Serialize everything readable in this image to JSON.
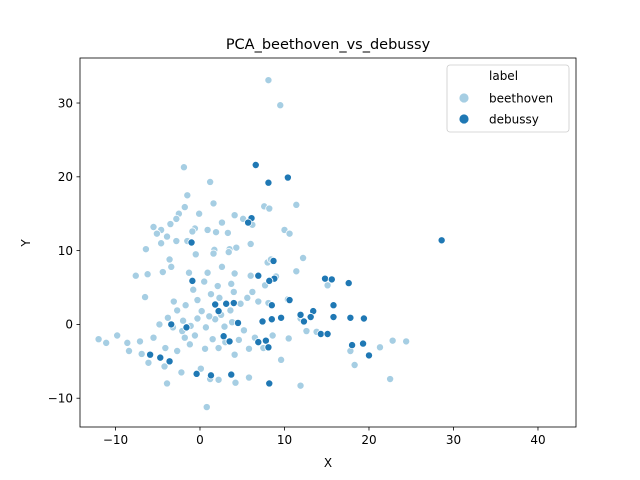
{
  "chart_data": {
    "type": "scatter",
    "title": "PCA_beethoven_vs_debussy",
    "xlabel": "X",
    "ylabel": "Y",
    "xlim": [
      -14.2,
      44.5
    ],
    "ylim": [
      -13.9,
      36.1
    ],
    "xticks": [
      -10,
      0,
      10,
      20,
      30,
      40
    ],
    "yticks": [
      -10,
      0,
      10,
      20,
      30
    ],
    "grid": false,
    "legend": {
      "title": "label",
      "placement": "top-right"
    },
    "series": [
      {
        "name": "beethoven",
        "color": "#a6cee3",
        "points": [
          [
            8.1,
            33.1
          ],
          [
            9.5,
            29.7
          ],
          [
            -1.9,
            21.3
          ],
          [
            1.2,
            19.3
          ],
          [
            -1.5,
            17.5
          ],
          [
            7.6,
            16.0
          ],
          [
            8.2,
            15.7
          ],
          [
            11.4,
            16.2
          ],
          [
            1.6,
            16.4
          ],
          [
            -1.8,
            15.9
          ],
          [
            -2.5,
            15.0
          ],
          [
            -3.5,
            13.6
          ],
          [
            -4.6,
            12.8
          ],
          [
            -5.1,
            12.3
          ],
          [
            -5.5,
            13.2
          ],
          [
            -2.8,
            14.3
          ],
          [
            -0.1,
            15.0
          ],
          [
            -0.6,
            13.0
          ],
          [
            0.9,
            12.8
          ],
          [
            1.9,
            12.5
          ],
          [
            2.6,
            13.8
          ],
          [
            3.3,
            12.4
          ],
          [
            4.1,
            14.8
          ],
          [
            5.1,
            14.3
          ],
          [
            6.2,
            13.5
          ],
          [
            -3.9,
            11.9
          ],
          [
            -2.8,
            11.3
          ],
          [
            -1.5,
            11.3
          ],
          [
            -0.9,
            12.6
          ],
          [
            -4.6,
            11.0
          ],
          [
            1.7,
            10.1
          ],
          [
            3.5,
            10.2
          ],
          [
            4.3,
            10.4
          ],
          [
            6.0,
            10.9
          ],
          [
            10.0,
            12.8
          ],
          [
            10.6,
            12.3
          ],
          [
            -6.4,
            10.2
          ],
          [
            -3.6,
            8.8
          ],
          [
            -0.5,
            9.5
          ],
          [
            1.6,
            9.6
          ],
          [
            3.4,
            9.8
          ],
          [
            -4.4,
            7.1
          ],
          [
            -7.6,
            6.6
          ],
          [
            -6.2,
            6.8
          ],
          [
            -3.4,
            7.8
          ],
          [
            -1.3,
            7.0
          ],
          [
            0.9,
            7.0
          ],
          [
            2.6,
            7.8
          ],
          [
            4.1,
            6.9
          ],
          [
            6.0,
            6.6
          ],
          [
            8.0,
            8.4
          ],
          [
            11.4,
            7.2
          ],
          [
            12.2,
            9.0
          ],
          [
            8.4,
            8.8
          ],
          [
            -6.5,
            3.7
          ],
          [
            -3.1,
            3.1
          ],
          [
            -1.7,
            2.6
          ],
          [
            -0.3,
            3.3
          ],
          [
            1.3,
            4.1
          ],
          [
            2.3,
            3.6
          ],
          [
            4.0,
            4.4
          ],
          [
            4.8,
            2.8
          ],
          [
            6.9,
            3.1
          ],
          [
            8.1,
            2.9
          ],
          [
            10.4,
            3.4
          ],
          [
            11.9,
            0.8
          ],
          [
            15.1,
            5.3
          ],
          [
            5.2,
            -0.8
          ],
          [
            -4.8,
            0.0
          ],
          [
            -3.2,
            -0.4
          ],
          [
            -2.1,
            -0.9
          ],
          [
            -1.1,
            -0.2
          ],
          [
            -0.3,
            0.8
          ],
          [
            0.7,
            -0.4
          ],
          [
            1.8,
            0.7
          ],
          [
            2.9,
            -0.3
          ],
          [
            3.8,
            0.3
          ],
          [
            -1.8,
            -1.8
          ],
          [
            -0.6,
            -1.5
          ],
          [
            1.5,
            -2.0
          ],
          [
            3.0,
            -2.4
          ],
          [
            4.6,
            -2.1
          ],
          [
            6.5,
            -1.8
          ],
          [
            8.6,
            -1.5
          ],
          [
            10.5,
            -1.9
          ],
          [
            12.6,
            -0.9
          ],
          [
            13.8,
            -1.0
          ],
          [
            -5.5,
            -1.8
          ],
          [
            -7.1,
            -2.3
          ],
          [
            -8.4,
            -3.6
          ],
          [
            -6.9,
            -4.0
          ],
          [
            -4.1,
            -3.2
          ],
          [
            -2.7,
            -3.6
          ],
          [
            -1.2,
            -2.7
          ],
          [
            0.6,
            -3.3
          ],
          [
            2.2,
            -3.2
          ],
          [
            4.1,
            -4.1
          ],
          [
            5.8,
            -3.3
          ],
          [
            7.5,
            -3.2
          ],
          [
            9.6,
            -4.8
          ],
          [
            -9.8,
            -1.5
          ],
          [
            -11.1,
            -2.5
          ],
          [
            -12.0,
            -2.0
          ],
          [
            -8.6,
            -2.5
          ],
          [
            -6.1,
            -5.2
          ],
          [
            -4.2,
            -5.7
          ],
          [
            -2.2,
            -6.5
          ],
          [
            0.1,
            -6.0
          ],
          [
            1.2,
            -7.4
          ],
          [
            2.2,
            -7.5
          ],
          [
            4.2,
            -7.9
          ],
          [
            5.8,
            -7.2
          ],
          [
            -3.9,
            -8.0
          ],
          [
            0.8,
            -11.2
          ],
          [
            17.8,
            -3.6
          ],
          [
            18.3,
            -5.5
          ],
          [
            21.3,
            -3.1
          ],
          [
            22.8,
            -2.2
          ],
          [
            24.4,
            -2.3
          ],
          [
            22.5,
            -7.4
          ],
          [
            11.9,
            -8.3
          ],
          [
            -2.0,
            0.5
          ],
          [
            0.2,
            1.8
          ],
          [
            1.1,
            1.1
          ],
          [
            2.5,
            1.3
          ],
          [
            3.6,
            1.9
          ],
          [
            5.6,
            3.6
          ],
          [
            -0.8,
            4.7
          ],
          [
            0.5,
            5.8
          ],
          [
            2.1,
            5.2
          ],
          [
            3.7,
            5.5
          ],
          [
            6.2,
            4.4
          ],
          [
            7.7,
            5.3
          ],
          [
            9.0,
            6.5
          ],
          [
            -2.7,
            1.9
          ],
          [
            -3.8,
            0.9
          ]
        ]
      },
      {
        "name": "debussy",
        "color": "#1f78b4",
        "points": [
          [
            6.6,
            21.6
          ],
          [
            8.1,
            19.2
          ],
          [
            10.4,
            19.9
          ],
          [
            28.6,
            11.4
          ],
          [
            6.1,
            14.4
          ],
          [
            5.7,
            13.8
          ],
          [
            -1.0,
            11.1
          ],
          [
            -0.9,
            5.9
          ],
          [
            8.7,
            8.6
          ],
          [
            8.8,
            6.2
          ],
          [
            8.2,
            5.9
          ],
          [
            6.9,
            6.6
          ],
          [
            14.8,
            6.2
          ],
          [
            15.6,
            6.1
          ],
          [
            17.6,
            5.6
          ],
          [
            10.6,
            3.3
          ],
          [
            15.8,
            2.6
          ],
          [
            13.4,
            1.8
          ],
          [
            11.9,
            1.3
          ],
          [
            13.1,
            1.0
          ],
          [
            15.8,
            1.0
          ],
          [
            17.8,
            0.9
          ],
          [
            19.4,
            0.8
          ],
          [
            8.5,
            2.6
          ],
          [
            4.0,
            2.9
          ],
          [
            3.1,
            2.8
          ],
          [
            1.8,
            2.7
          ],
          [
            2.2,
            1.8
          ],
          [
            4.5,
            0.2
          ],
          [
            7.4,
            0.4
          ],
          [
            9.6,
            0.9
          ],
          [
            12.3,
            0.4
          ],
          [
            14.3,
            -1.3
          ],
          [
            15.1,
            -1.3
          ],
          [
            18.0,
            -2.8
          ],
          [
            19.3,
            -2.6
          ],
          [
            20.0,
            -4.2
          ],
          [
            -3.4,
            0.0
          ],
          [
            -1.6,
            -0.4
          ],
          [
            2.8,
            -1.6
          ],
          [
            3.5,
            -2.3
          ],
          [
            7.8,
            -2.2
          ],
          [
            8.1,
            -3.1
          ],
          [
            6.9,
            -2.4
          ],
          [
            -5.9,
            -4.1
          ],
          [
            -4.7,
            -4.5
          ],
          [
            -3.6,
            -5.0
          ],
          [
            -0.4,
            -6.7
          ],
          [
            1.3,
            -6.9
          ],
          [
            3.7,
            -6.8
          ],
          [
            8.2,
            -8.0
          ],
          [
            8.5,
            0.7
          ]
        ]
      }
    ]
  }
}
